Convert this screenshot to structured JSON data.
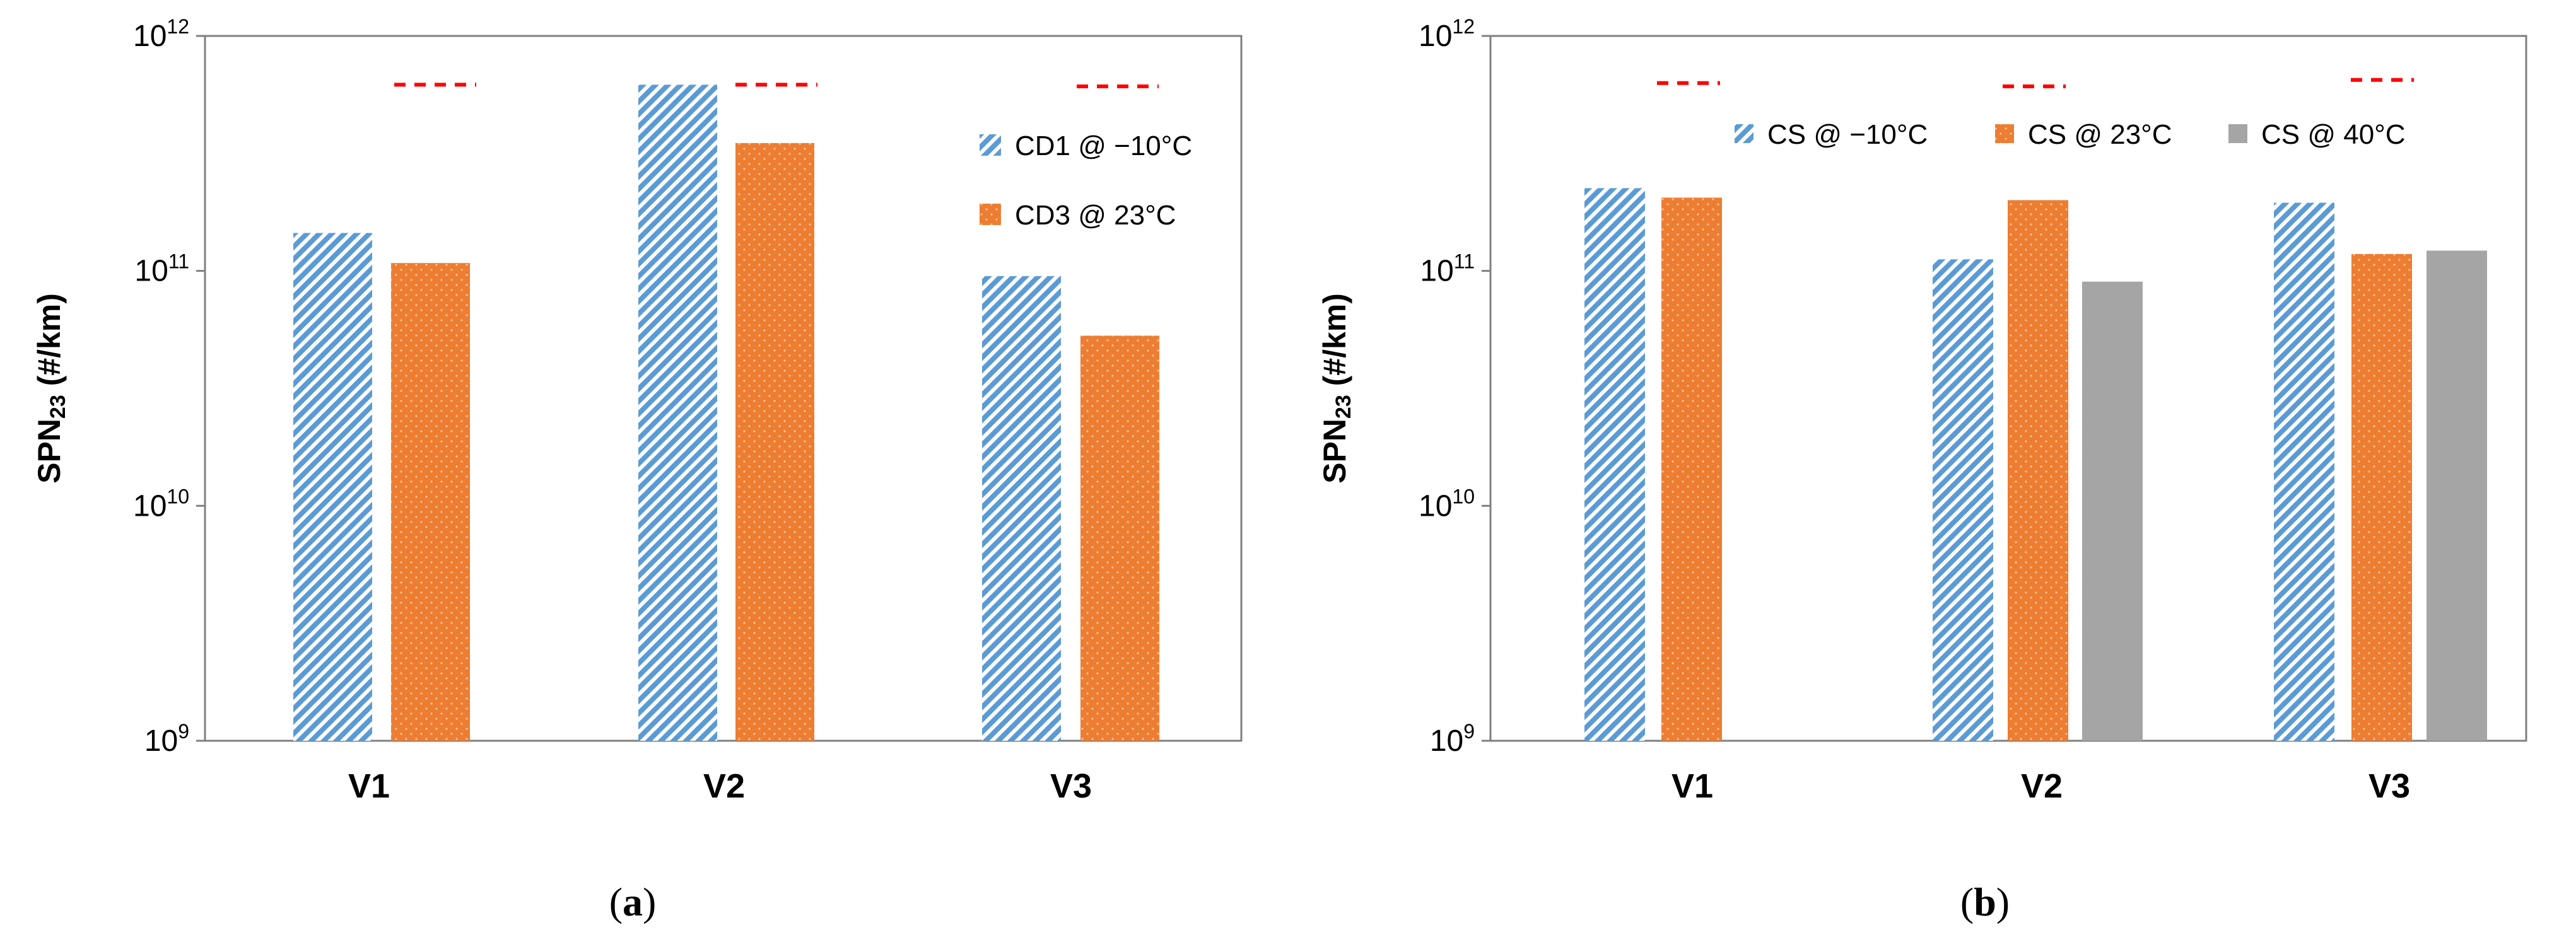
{
  "chart_data": [
    {
      "id": "a",
      "type": "bar",
      "panel_label_open": "(",
      "panel_label_letter": "a",
      "panel_label_close": ")",
      "ylabel_main": "SPN",
      "ylabel_sub": "23",
      "ylabel_unit": " (#/km)",
      "yscale": "log",
      "ylim": [
        1000000000.0,
        1000000000000.0
      ],
      "yticks": [
        {
          "base": "10",
          "exp": "9",
          "value": 1000000000.0
        },
        {
          "base": "10",
          "exp": "10",
          "value": 10000000000.0
        },
        {
          "base": "10",
          "exp": "11",
          "value": 100000000000.0
        },
        {
          "base": "10",
          "exp": "12",
          "value": 1000000000000.0
        }
      ],
      "categories": [
        "V1",
        "V2",
        "V3"
      ],
      "series": [
        {
          "name": "CD1 @ −10°C",
          "pattern": "hatch",
          "color": "#5B9BD5",
          "values": [
            145000000000.0,
            620000000000.0,
            95000000000.0
          ]
        },
        {
          "name": "CD3 @ 23°C",
          "pattern": "dots",
          "color": "#ED7D31",
          "values": [
            108000000000.0,
            350000000000.0,
            53000000000.0
          ]
        }
      ],
      "reference_lines": {
        "color": "#FF0000",
        "style": "dashed",
        "values": [
          620000000000.0,
          620000000000.0,
          610000000000.0
        ]
      },
      "legend_placement": "top-right"
    },
    {
      "id": "b",
      "type": "bar",
      "panel_label_open": "(",
      "panel_label_letter": "b",
      "panel_label_close": ")",
      "ylabel_main": "SPN",
      "ylabel_sub": "23",
      "ylabel_unit": " (#/km)",
      "yscale": "log",
      "ylim": [
        1000000000.0,
        1000000000000.0
      ],
      "yticks": [
        {
          "base": "10",
          "exp": "9",
          "value": 1000000000.0
        },
        {
          "base": "10",
          "exp": "10",
          "value": 10000000000.0
        },
        {
          "base": "10",
          "exp": "11",
          "value": 100000000000.0
        },
        {
          "base": "10",
          "exp": "12",
          "value": 1000000000000.0
        }
      ],
      "categories": [
        "V1",
        "V2",
        "V3"
      ],
      "series": [
        {
          "name": "CS @ −10°C",
          "pattern": "hatch",
          "color": "#5B9BD5",
          "values": [
            225000000000.0,
            112000000000.0,
            195000000000.0
          ]
        },
        {
          "name": "CS @ 23°C",
          "pattern": "dots",
          "color": "#ED7D31",
          "values": [
            205000000000.0,
            200000000000.0,
            118000000000.0
          ]
        },
        {
          "name": "CS @ 40°C",
          "pattern": "solid",
          "color": "#A5A5A5",
          "values": [
            null,
            90000000000.0,
            122000000000.0
          ]
        }
      ],
      "reference_lines": {
        "color": "#FF0000",
        "style": "dashed",
        "values": [
          630000000000.0,
          610000000000.0,
          650000000000.0
        ]
      },
      "legend_placement": "top"
    }
  ]
}
